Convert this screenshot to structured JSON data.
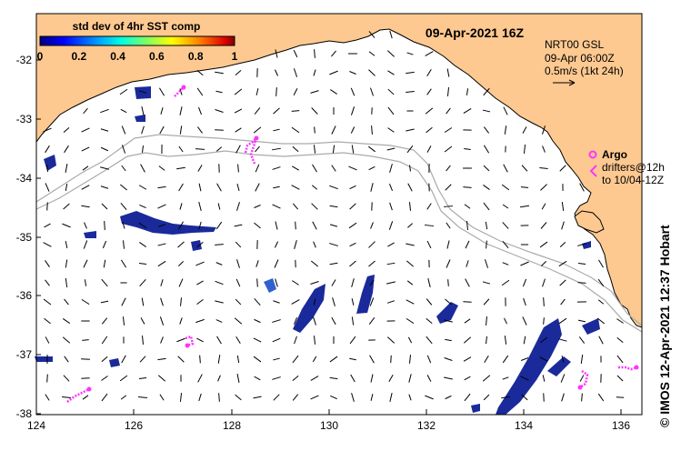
{
  "map": {
    "title": "09-Apr-2021 16Z",
    "colorbar": {
      "title": "std dev of 4hr SST comp",
      "ticks": [
        "0",
        "0.2",
        "0.4",
        "0.6",
        "0.8",
        "1"
      ],
      "range": [
        0,
        1
      ]
    },
    "current_legend": {
      "line1": "NRT00 GSL",
      "line2": "09-Apr 06:00Z",
      "line3": "0.5m/s (1kt 24h)"
    },
    "argo_legend": {
      "label": "Argo",
      "line1": "drifters@12h",
      "line2": "to 10/04-12Z"
    },
    "credit": "© IMOS 12-Apr-2021 12:37 Hobart",
    "lat_ticks": [
      "-32",
      "-33",
      "-34",
      "-35",
      "-36",
      "-37",
      "-38"
    ],
    "lon_ticks": [
      "124",
      "126",
      "128",
      "130",
      "132",
      "134",
      "136"
    ],
    "colors": {
      "land": "#fdc990",
      "ocean": "#ffffff",
      "argo": "#ff33ff",
      "contour": "#aaaaaa",
      "sst_patch": "#1a2a9a"
    }
  }
}
